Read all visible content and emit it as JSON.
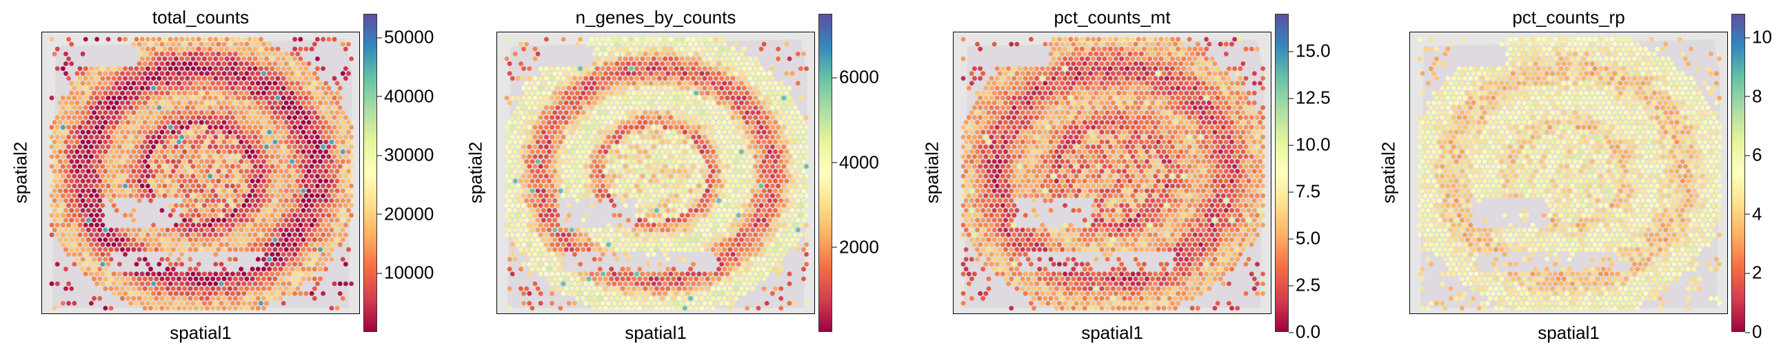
{
  "chart_data": [
    {
      "type": "scatter",
      "title": "total_counts",
      "xlabel": "spatial1",
      "ylabel": "spatial2",
      "colorbar": {
        "cmap": "Spectral_r",
        "range": [
          0,
          54000
        ],
        "ticks": [
          "10000",
          "20000",
          "30000",
          "40000",
          "50000"
        ],
        "tick_values": [
          10000,
          20000,
          30000,
          40000,
          50000
        ]
      },
      "pattern": {
        "base": 0.18,
        "ring": 0.15,
        "center": 0.25,
        "hot": 0.85
      }
    },
    {
      "type": "scatter",
      "title": "n_genes_by_counts",
      "xlabel": "spatial1",
      "ylabel": "spatial2",
      "colorbar": {
        "cmap": "Spectral_r",
        "range": [
          0,
          7500
        ],
        "ticks": [
          "2000",
          "4000",
          "6000"
        ],
        "tick_values": [
          2000,
          4000,
          6000
        ]
      },
      "pattern": {
        "base": 0.35,
        "ring": 0.2,
        "center": 0.45,
        "hot": 0.8
      }
    },
    {
      "type": "scatter",
      "title": "pct_counts_mt",
      "xlabel": "spatial1",
      "ylabel": "spatial2",
      "colorbar": {
        "cmap": "Spectral_r",
        "range": [
          0,
          17
        ],
        "ticks": [
          "0.0",
          "2.5",
          "5.0",
          "7.5",
          "10.0",
          "12.5",
          "15.0"
        ],
        "tick_values": [
          0,
          2.5,
          5,
          7.5,
          10,
          12.5,
          15
        ]
      },
      "pattern": {
        "base": 0.22,
        "ring": 0.1,
        "center": 0.25,
        "hot": 0.6
      }
    },
    {
      "type": "scatter",
      "title": "pct_counts_rp",
      "xlabel": "spatial1",
      "ylabel": "spatial2",
      "colorbar": {
        "cmap": "Spectral_r",
        "range": [
          0,
          10.8
        ],
        "ticks": [
          "0",
          "2",
          "4",
          "6",
          "8",
          "10"
        ],
        "tick_values": [
          0,
          2,
          4,
          6,
          8,
          10
        ]
      },
      "pattern": {
        "base": 0.42,
        "ring": 0.08,
        "center": 0.48,
        "hot": 0.6
      }
    }
  ]
}
